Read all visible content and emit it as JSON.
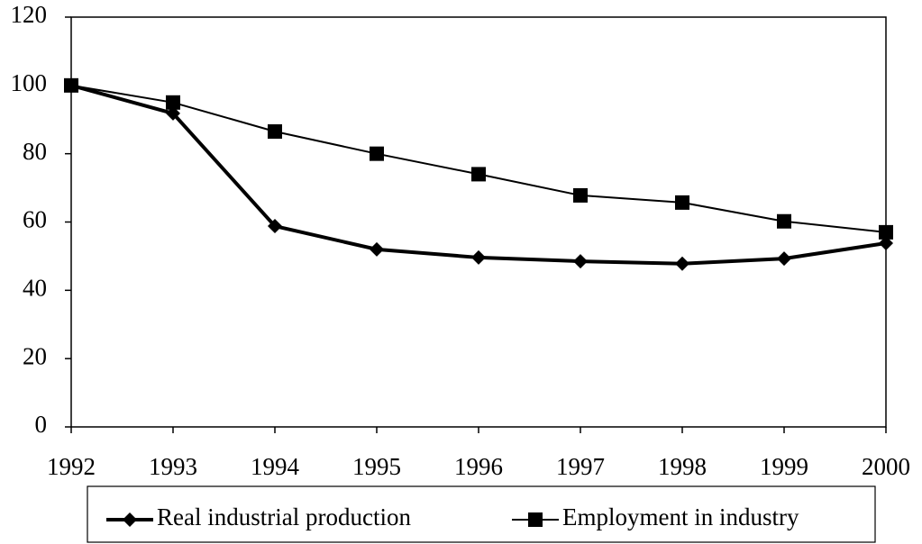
{
  "chart_data": {
    "type": "line",
    "x": [
      1992,
      1993,
      1994,
      1995,
      1996,
      1997,
      1998,
      1999,
      2000
    ],
    "series": [
      {
        "name": "Real industrial production",
        "color": "#000000",
        "marker": "diamond",
        "values": [
          100,
          91.8,
          58.8,
          52,
          49.6,
          48.5,
          47.8,
          49.3,
          53.8
        ]
      },
      {
        "name": "Employment in industry",
        "color": "#000000",
        "marker": "square",
        "values": [
          100,
          95,
          86.5,
          80,
          74,
          67.8,
          65.7,
          60.2,
          57
        ]
      }
    ],
    "xlim": [
      1992,
      2000
    ],
    "xticks": [
      1992,
      1993,
      1994,
      1995,
      1996,
      1997,
      1998,
      1999,
      2000
    ],
    "ylim": [
      0,
      120
    ],
    "yticks": [
      0,
      20,
      40,
      60,
      80,
      100,
      120
    ],
    "grid": false,
    "legend": "bottom"
  }
}
